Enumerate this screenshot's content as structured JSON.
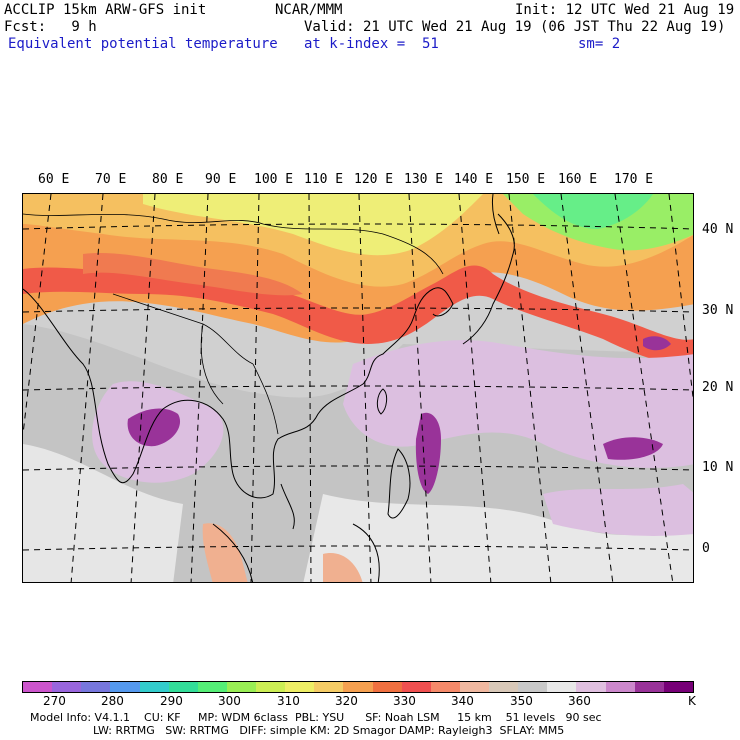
{
  "header": {
    "model_line": "ACCLIP 15km ARW-GFS init",
    "forecast_line": "Fcst:   9 h",
    "field_name": "Equivalent potential temperature",
    "center": "NCAR/MMM",
    "valid_line": "Valid: 21 UTC Wed 21 Aug 19 (06 JST Thu 22 Aug 19)",
    "level_line": "at k-index =  51",
    "init_line": "Init: 12 UTC Wed 21 Aug 19",
    "smooth_line": "sm= 2"
  },
  "axes": {
    "lon_labels": [
      "60 E",
      "70 E",
      "80 E",
      "90 E",
      "100 E",
      "110 E",
      "120 E",
      "130 E",
      "140 E",
      "150 E",
      "160 E",
      "170 E"
    ],
    "lat_labels": [
      "40 N",
      "30 N",
      "20 N",
      "10 N",
      "0"
    ]
  },
  "colorbar": {
    "unit": "K",
    "tick_labels": [
      "270",
      "280",
      "290",
      "300",
      "310",
      "320",
      "330",
      "340",
      "350",
      "360"
    ],
    "colors": [
      "#cc55cc",
      "#9966dd",
      "#7777dd",
      "#5599ee",
      "#33cccc",
      "#33dd99",
      "#55ee77",
      "#99ee55",
      "#ccee55",
      "#eeee66",
      "#f5cc66",
      "#f5a050",
      "#f07040",
      "#f05050",
      "#f58a6a",
      "#f0b8a0",
      "#d8c8b8",
      "#c8c8c8",
      "#e8e8e8",
      "#e0c0e0",
      "#cc88cc",
      "#993399",
      "#770077"
    ]
  },
  "footer": {
    "line1": "Model Info: V4.1.1    CU: KF     MP: WDM 6class  PBL: YSU      SF: Noah LSM     15 km    51 levels   90 sec",
    "line2": "                  LW: RRTMG   SW: RRTMG   DIFF: simple KM: 2D Smagor DAMP: Rayleigh3  SFLAY: MM5"
  }
}
